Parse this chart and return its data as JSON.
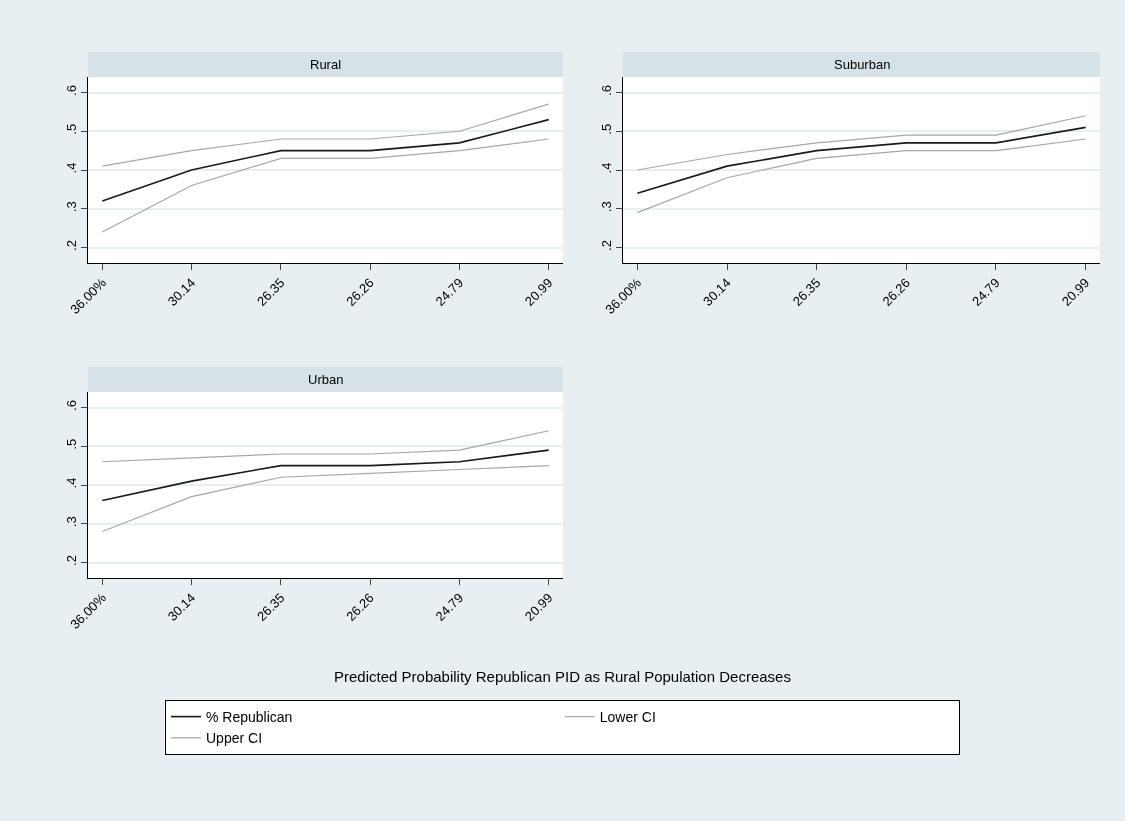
{
  "chart_data": [
    {
      "type": "line",
      "title": "Rural",
      "categories": [
        "36.00%",
        "30.14",
        "26.35",
        "26.26",
        "24.79",
        "20.99"
      ],
      "ylim": [
        0.16,
        0.64
      ],
      "yticks": [
        {
          "value": 0.2,
          "label": ".2"
        },
        {
          "value": 0.3,
          "label": ".3"
        },
        {
          "value": 0.4,
          "label": ".4"
        },
        {
          "value": 0.5,
          "label": ".5"
        },
        {
          "value": 0.6,
          "label": ".6"
        }
      ],
      "grid": "y",
      "legend": "bottom",
      "marker": "none",
      "line_style": "solid",
      "series": [
        {
          "name": "% Republican",
          "color": "#1a1a1a",
          "values": [
            0.32,
            0.4,
            0.45,
            0.45,
            0.47,
            0.53
          ]
        },
        {
          "name": "Lower CI",
          "color": "#a6a6a6",
          "values": [
            0.24,
            0.36,
            0.43,
            0.43,
            0.45,
            0.48
          ]
        },
        {
          "name": "Upper CI",
          "color": "#a6a6a6",
          "values": [
            0.41,
            0.45,
            0.48,
            0.48,
            0.5,
            0.57
          ]
        }
      ]
    },
    {
      "type": "line",
      "title": "Suburban",
      "categories": [
        "36.00%",
        "30.14",
        "26.35",
        "26.26",
        "24.79",
        "20.99"
      ],
      "ylim": [
        0.16,
        0.64
      ],
      "yticks": [
        {
          "value": 0.2,
          "label": ".2"
        },
        {
          "value": 0.3,
          "label": ".3"
        },
        {
          "value": 0.4,
          "label": ".4"
        },
        {
          "value": 0.5,
          "label": ".5"
        },
        {
          "value": 0.6,
          "label": ".6"
        }
      ],
      "grid": "y",
      "marker": "none",
      "line_style": "solid",
      "series": [
        {
          "color": "#1a1a1a",
          "values": [
            0.34,
            0.41,
            0.45,
            0.47,
            0.47,
            0.51
          ]
        },
        {
          "color": "#a6a6a6",
          "values": [
            0.29,
            0.38,
            0.43,
            0.45,
            0.45,
            0.48
          ]
        },
        {
          "color": "#a6a6a6",
          "values": [
            0.4,
            0.44,
            0.47,
            0.49,
            0.49,
            0.54
          ]
        }
      ]
    },
    {
      "type": "line",
      "title": "Urban",
      "categories": [
        "36.00%",
        "30.14",
        "26.35",
        "26.26",
        "24.79",
        "20.99"
      ],
      "ylim": [
        0.16,
        0.64
      ],
      "yticks": [
        {
          "value": 0.2,
          "label": ".2"
        },
        {
          "value": 0.3,
          "label": ".3"
        },
        {
          "value": 0.4,
          "label": ".4"
        },
        {
          "value": 0.5,
          "label": ".5"
        },
        {
          "value": 0.6,
          "label": ".6"
        }
      ],
      "grid": "y",
      "marker": "none",
      "line_style": "solid",
      "annotations": [
        "Predicted Probability Republican PID as Rural Population Decreases"
      ],
      "series": [
        {
          "color": "#1a1a1a",
          "values": [
            0.36,
            0.41,
            0.45,
            0.45,
            0.46,
            0.49
          ]
        },
        {
          "color": "#a6a6a6",
          "values": [
            0.28,
            0.37,
            0.42,
            0.43,
            0.44,
            0.45
          ]
        },
        {
          "color": "#a6a6a6",
          "values": [
            0.46,
            0.47,
            0.48,
            0.48,
            0.49,
            0.54
          ]
        }
      ]
    }
  ]
}
